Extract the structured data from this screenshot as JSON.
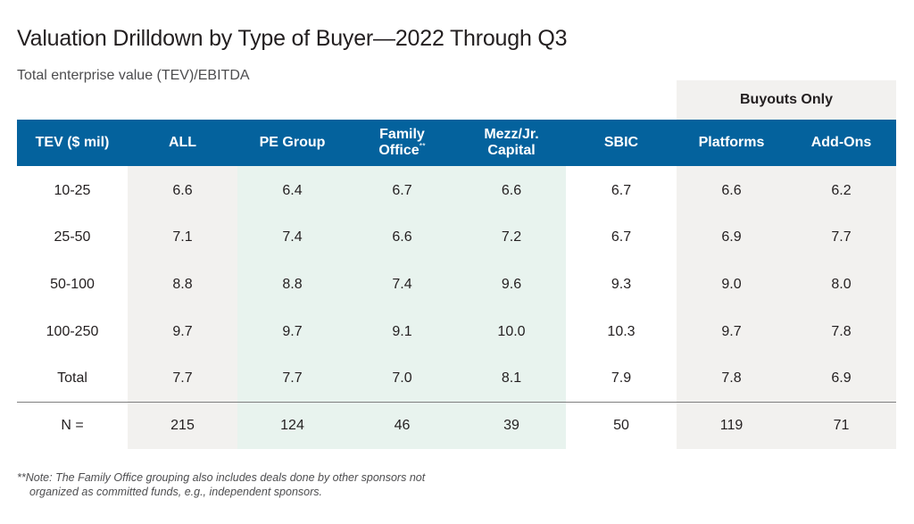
{
  "title": "Valuation Drilldown by Type of Buyer—2022 Through Q3",
  "subtitle": "Total enterprise value (TEV)/EBITDA",
  "group_header": "Buyouts Only",
  "colors": {
    "header": "#04629d",
    "shade_gray": "#f2f1ef",
    "shade_green": "#e8f3ee"
  },
  "note_line1": "**Note: The Family Office grouping also includes deals done by other sponsors not",
  "note_line2": "organized as committed funds, e.g., independent sponsors.",
  "chart_data": {
    "type": "table",
    "title": "Valuation Drilldown by Type of Buyer—2022 Through Q3",
    "subtitle": "Total enterprise value (TEV)/EBITDA",
    "columns": [
      "TEV ($ mil)",
      "ALL",
      "PE Group",
      "Family Office**",
      "Mezz/Jr. Capital",
      "SBIC",
      "Platforms",
      "Add-Ons"
    ],
    "header_lines": {
      "c0": [
        "TEV ($ mil)"
      ],
      "c1": [
        "ALL"
      ],
      "c2": [
        "PE Group"
      ],
      "c3": [
        "Family",
        "Office"
      ],
      "c3_mark": "**",
      "c4": [
        "Mezz/Jr.",
        "Capital"
      ],
      "c5": [
        "SBIC"
      ],
      "c6": [
        "Platforms"
      ],
      "c7": [
        "Add-Ons"
      ]
    },
    "column_group": {
      "label": "Buyouts Only",
      "columns": [
        "Platforms",
        "Add-Ons"
      ]
    },
    "rows": [
      [
        "10-25",
        "6.6",
        "6.4",
        "6.7",
        "6.6",
        "6.7",
        "6.6",
        "6.2"
      ],
      [
        "25-50",
        "7.1",
        "7.4",
        "6.6",
        "7.2",
        "6.7",
        "6.9",
        "7.7"
      ],
      [
        "50-100",
        "8.8",
        "8.8",
        "7.4",
        "9.6",
        "9.3",
        "9.0",
        "8.0"
      ],
      [
        "100-250",
        "9.7",
        "9.7",
        "9.1",
        "10.0",
        "10.3",
        "9.7",
        "7.8"
      ],
      [
        "Total",
        "7.7",
        "7.7",
        "7.0",
        "8.1",
        "7.9",
        "7.8",
        "6.9"
      ],
      [
        "N =",
        "215",
        "124",
        "46",
        "39",
        "50",
        "119",
        "71"
      ]
    ]
  }
}
